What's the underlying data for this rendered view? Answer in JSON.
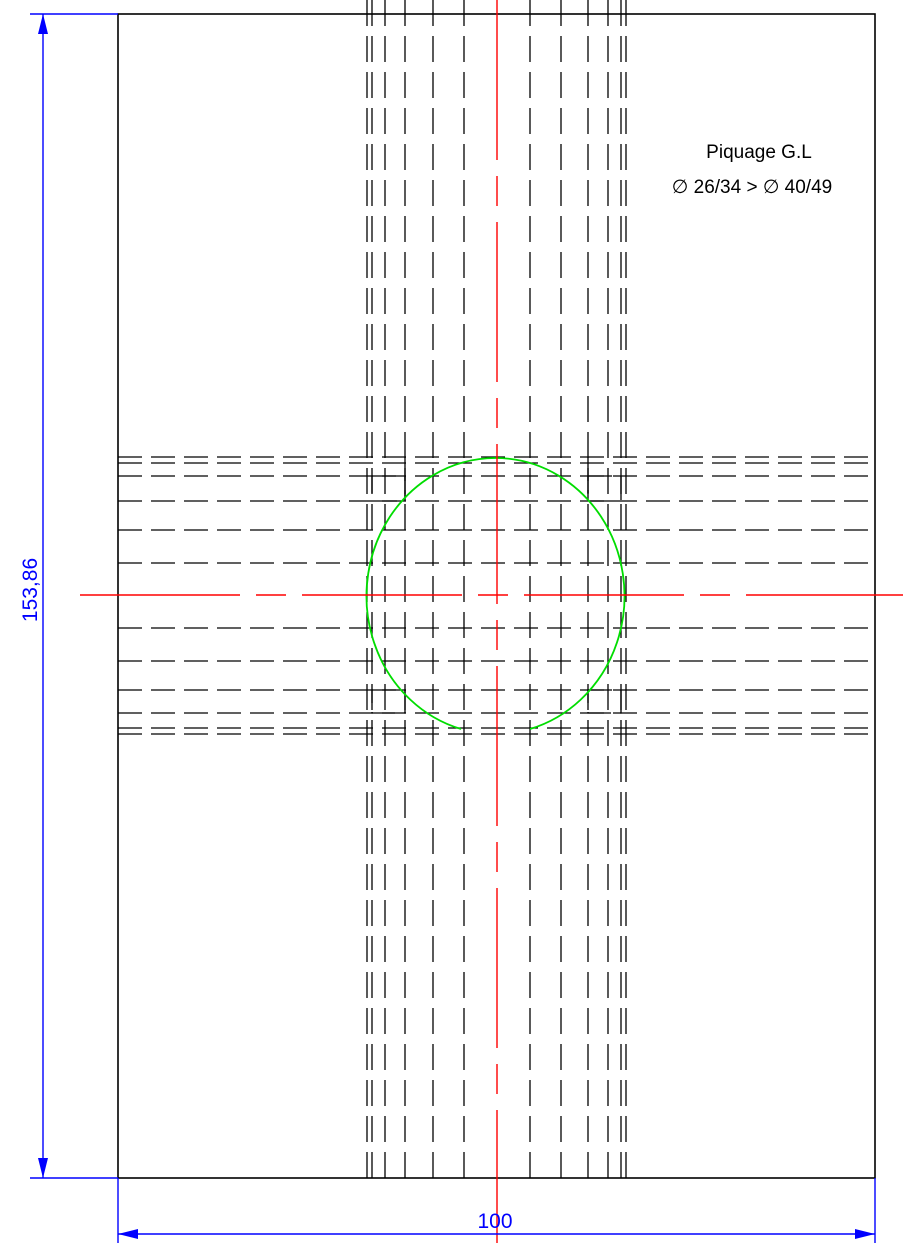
{
  "drawing": {
    "note_line1": "Piquage G.L",
    "note_line2": "∅ 26/34 > ∅ 40/49",
    "dim_height": "153,86",
    "dim_width": "100"
  },
  "colors": {
    "outline": "#000000",
    "hidden_lines": "#000000",
    "center_lines": "#ff0000",
    "dimensions": "#0000ff",
    "cut_profile": "#00dd00"
  }
}
